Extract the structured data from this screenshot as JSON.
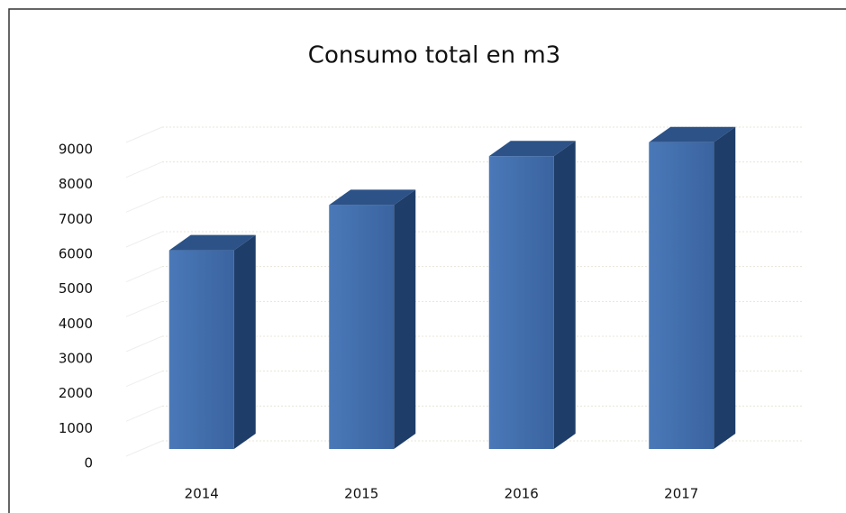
{
  "chart_data": {
    "type": "bar3d",
    "title": "Consumo total en m3",
    "categories": [
      "2014",
      "2015",
      "2016",
      "2017"
    ],
    "values": [
      5700,
      7000,
      8400,
      8800
    ],
    "color": "#3e6aa8",
    "ylim": [
      0,
      9000
    ],
    "yticks": [
      0,
      1000,
      2000,
      3000,
      4000,
      5000,
      6000,
      7000,
      8000,
      9000
    ],
    "grid": true
  }
}
